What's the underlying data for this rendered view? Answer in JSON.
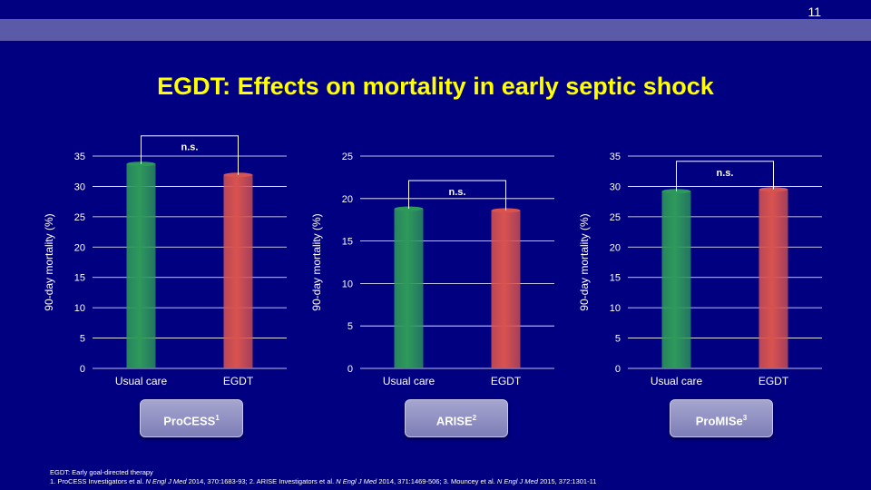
{
  "slide": {
    "page_number": "11",
    "title": "EGDT: Effects on mortality in early septic shock",
    "colors": {
      "background": "#000080",
      "band": "#5a5aa8",
      "title": "#ffff00",
      "usual_care": "#2e9a5a",
      "egdt": "#d9534f"
    }
  },
  "trials": [
    {
      "name": "ProCESS",
      "ref": "1"
    },
    {
      "name": "ARISE",
      "ref": "2"
    },
    {
      "name": "ProMISe",
      "ref": "3"
    }
  ],
  "chart_data": [
    {
      "type": "bar",
      "categories": [
        "Usual care",
        "EGDT"
      ],
      "values": [
        33.7,
        31.9
      ],
      "ylabel": "90-day mortality (%)",
      "ylim": [
        0,
        35
      ],
      "yticks": [
        "0",
        "5",
        "10",
        "15",
        "20",
        "25",
        "30",
        "35"
      ],
      "annotation": "n.s.",
      "grid": true
    },
    {
      "type": "bar",
      "categories": [
        "Usual care",
        "EGDT"
      ],
      "values": [
        18.8,
        18.6
      ],
      "ylabel": "90-day mortality (%)",
      "ylim": [
        0,
        25
      ],
      "yticks": [
        "0",
        "5",
        "10",
        "15",
        "20",
        "25"
      ],
      "annotation": "n.s.",
      "grid": true
    },
    {
      "type": "bar",
      "categories": [
        "Usual care",
        "EGDT"
      ],
      "values": [
        29.2,
        29.5
      ],
      "ylabel": "90-day mortality (%)",
      "ylim": [
        0,
        35
      ],
      "yticks": [
        "0",
        "5",
        "10",
        "15",
        "20",
        "25",
        "30",
        "35"
      ],
      "annotation": "n.s.",
      "grid": true
    }
  ],
  "footnotes": {
    "line1": "EGDT: Early goal-directed therapy",
    "refs": [
      {
        "pre": "1. ProCESS Investigators et al. ",
        "journal": "N Engl J Med",
        "post": " 2014, 370:1683-93; "
      },
      {
        "pre": "2. ARISE Investigators et al. ",
        "journal": "N Engl J Med",
        "post": " 2014, 371:1469-506; "
      },
      {
        "pre": "3. Mouncey et al. ",
        "journal": "N Engl J Med",
        "post": " 2015, 372:1301-11"
      }
    ]
  }
}
